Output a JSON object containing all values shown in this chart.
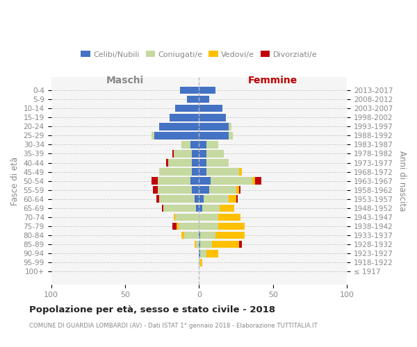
{
  "age_groups": [
    "100+",
    "95-99",
    "90-94",
    "85-89",
    "80-84",
    "75-79",
    "70-74",
    "65-69",
    "60-64",
    "55-59",
    "50-54",
    "45-49",
    "40-44",
    "35-39",
    "30-34",
    "25-29",
    "20-24",
    "15-19",
    "10-14",
    "5-9",
    "0-4"
  ],
  "birth_years": [
    "≤ 1917",
    "1918-1922",
    "1923-1927",
    "1928-1932",
    "1933-1937",
    "1938-1942",
    "1943-1947",
    "1948-1952",
    "1953-1957",
    "1958-1962",
    "1963-1967",
    "1968-1972",
    "1973-1977",
    "1978-1982",
    "1983-1987",
    "1988-1992",
    "1993-1997",
    "1998-2002",
    "2003-2007",
    "2008-2012",
    "2013-2017"
  ],
  "maschi_celibe": [
    0,
    0,
    0,
    0,
    0,
    0,
    0,
    2,
    3,
    5,
    6,
    5,
    5,
    5,
    6,
    30,
    27,
    20,
    16,
    8,
    13
  ],
  "maschi_coniugato": [
    0,
    0,
    0,
    2,
    10,
    14,
    16,
    22,
    24,
    23,
    22,
    22,
    16,
    12,
    6,
    2,
    0,
    0,
    0,
    0,
    0
  ],
  "maschi_vedovo": [
    0,
    0,
    0,
    1,
    2,
    1,
    1,
    0,
    0,
    0,
    0,
    0,
    0,
    0,
    0,
    0,
    0,
    0,
    0,
    0,
    0
  ],
  "maschi_divorziato": [
    0,
    0,
    0,
    0,
    0,
    3,
    0,
    1,
    2,
    3,
    4,
    0,
    1,
    1,
    0,
    0,
    0,
    0,
    0,
    0,
    0
  ],
  "femmine_celibe": [
    0,
    0,
    1,
    1,
    1,
    0,
    0,
    2,
    3,
    7,
    8,
    5,
    5,
    5,
    5,
    20,
    20,
    18,
    16,
    7,
    11
  ],
  "femmine_coniugata": [
    0,
    1,
    4,
    8,
    10,
    13,
    13,
    12,
    17,
    18,
    28,
    22,
    15,
    12,
    8,
    3,
    2,
    0,
    0,
    0,
    0
  ],
  "femmine_vedova": [
    0,
    1,
    8,
    18,
    20,
    18,
    15,
    10,
    5,
    2,
    2,
    2,
    0,
    0,
    0,
    0,
    0,
    0,
    0,
    0,
    0
  ],
  "femmine_divorziata": [
    0,
    0,
    0,
    2,
    0,
    0,
    0,
    0,
    1,
    1,
    4,
    0,
    0,
    0,
    0,
    0,
    0,
    0,
    0,
    0,
    0
  ],
  "color_celibe": "#4472C4",
  "color_coniugato": "#c5d9a0",
  "color_vedovo": "#ffc000",
  "color_divorziato": "#c0000b",
  "title": "Popolazione per età, sesso e stato civile - 2018",
  "subtitle": "COMUNE DI GUARDIA LOMBARDI (AV) - Dati ISTAT 1° gennaio 2018 - Elaborazione TUTTITALIA.IT",
  "label_maschi": "Maschi",
  "label_femmine": "Femmine",
  "label_maschi_color": "#888888",
  "label_femmine_color": "#c00000",
  "ylabel_left": "Fasce di età",
  "ylabel_right": "Anni di nascita",
  "xlim": 100,
  "legend_labels": [
    "Celibi/Nubili",
    "Coniugati/e",
    "Vedovi/e",
    "Divorziati/e"
  ],
  "background_color": "#ffffff",
  "axes_bg": "#f5f5f5",
  "grid_color": "#cccccc",
  "label_color": "#888888",
  "title_color": "#222222"
}
